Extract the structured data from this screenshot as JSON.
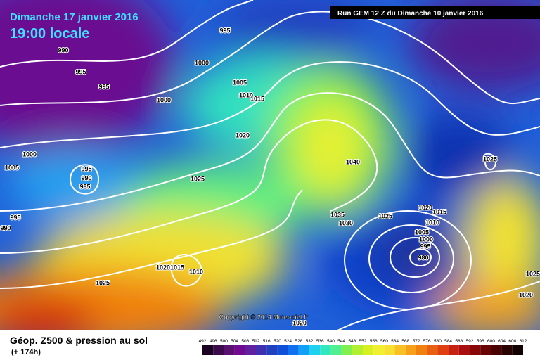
{
  "header": {
    "date": "Dimanche 17 janvier 2016",
    "time": "19:00 locale",
    "run": "Run GEM 12 Z du Dimanche 10 janvier 2016"
  },
  "copyright": "Copyright © 2014 Meteociel.fr",
  "footer": {
    "title": "Géop. Z500 & pression au sol",
    "lead": "(+ 174h)"
  },
  "isobar_labels": [
    "995",
    "990",
    "995",
    "1000",
    "995",
    "1005",
    "1010",
    "1015",
    "1000",
    "1020",
    "1000",
    "1005",
    "995",
    "990",
    "985",
    "1025",
    "1040",
    "1025",
    "995",
    "990",
    "1035",
    "1030",
    "1025",
    "1020",
    "1015",
    "1010",
    "1005",
    "1000",
    "995",
    "980",
    "1020",
    "1015",
    "1010",
    "1025",
    "1020",
    "1020",
    "1025"
  ],
  "colorbar": {
    "labels": [
      "492",
      "496",
      "500",
      "504",
      "508",
      "512",
      "516",
      "520",
      "524",
      "528",
      "532",
      "536",
      "540",
      "544",
      "548",
      "552",
      "556",
      "560",
      "564",
      "568",
      "572",
      "576",
      "580",
      "584",
      "588",
      "592",
      "596",
      "600",
      "604",
      "608",
      "612"
    ],
    "colors": [
      "#1a0020",
      "#3a0a4a",
      "#5a1070",
      "#700a90",
      "#6020a0",
      "#4030b0",
      "#2040c0",
      "#1050d8",
      "#1070f0",
      "#10a0f8",
      "#20d0f0",
      "#30e8c0",
      "#50f090",
      "#80f050",
      "#b0f030",
      "#d8f020",
      "#f0f030",
      "#f8e030",
      "#f8c020",
      "#f8a018",
      "#f08010",
      "#e86010",
      "#e04010",
      "#c82010",
      "#a81010",
      "#880808",
      "#680404",
      "#480202",
      "#280101",
      "#100000"
    ]
  }
}
